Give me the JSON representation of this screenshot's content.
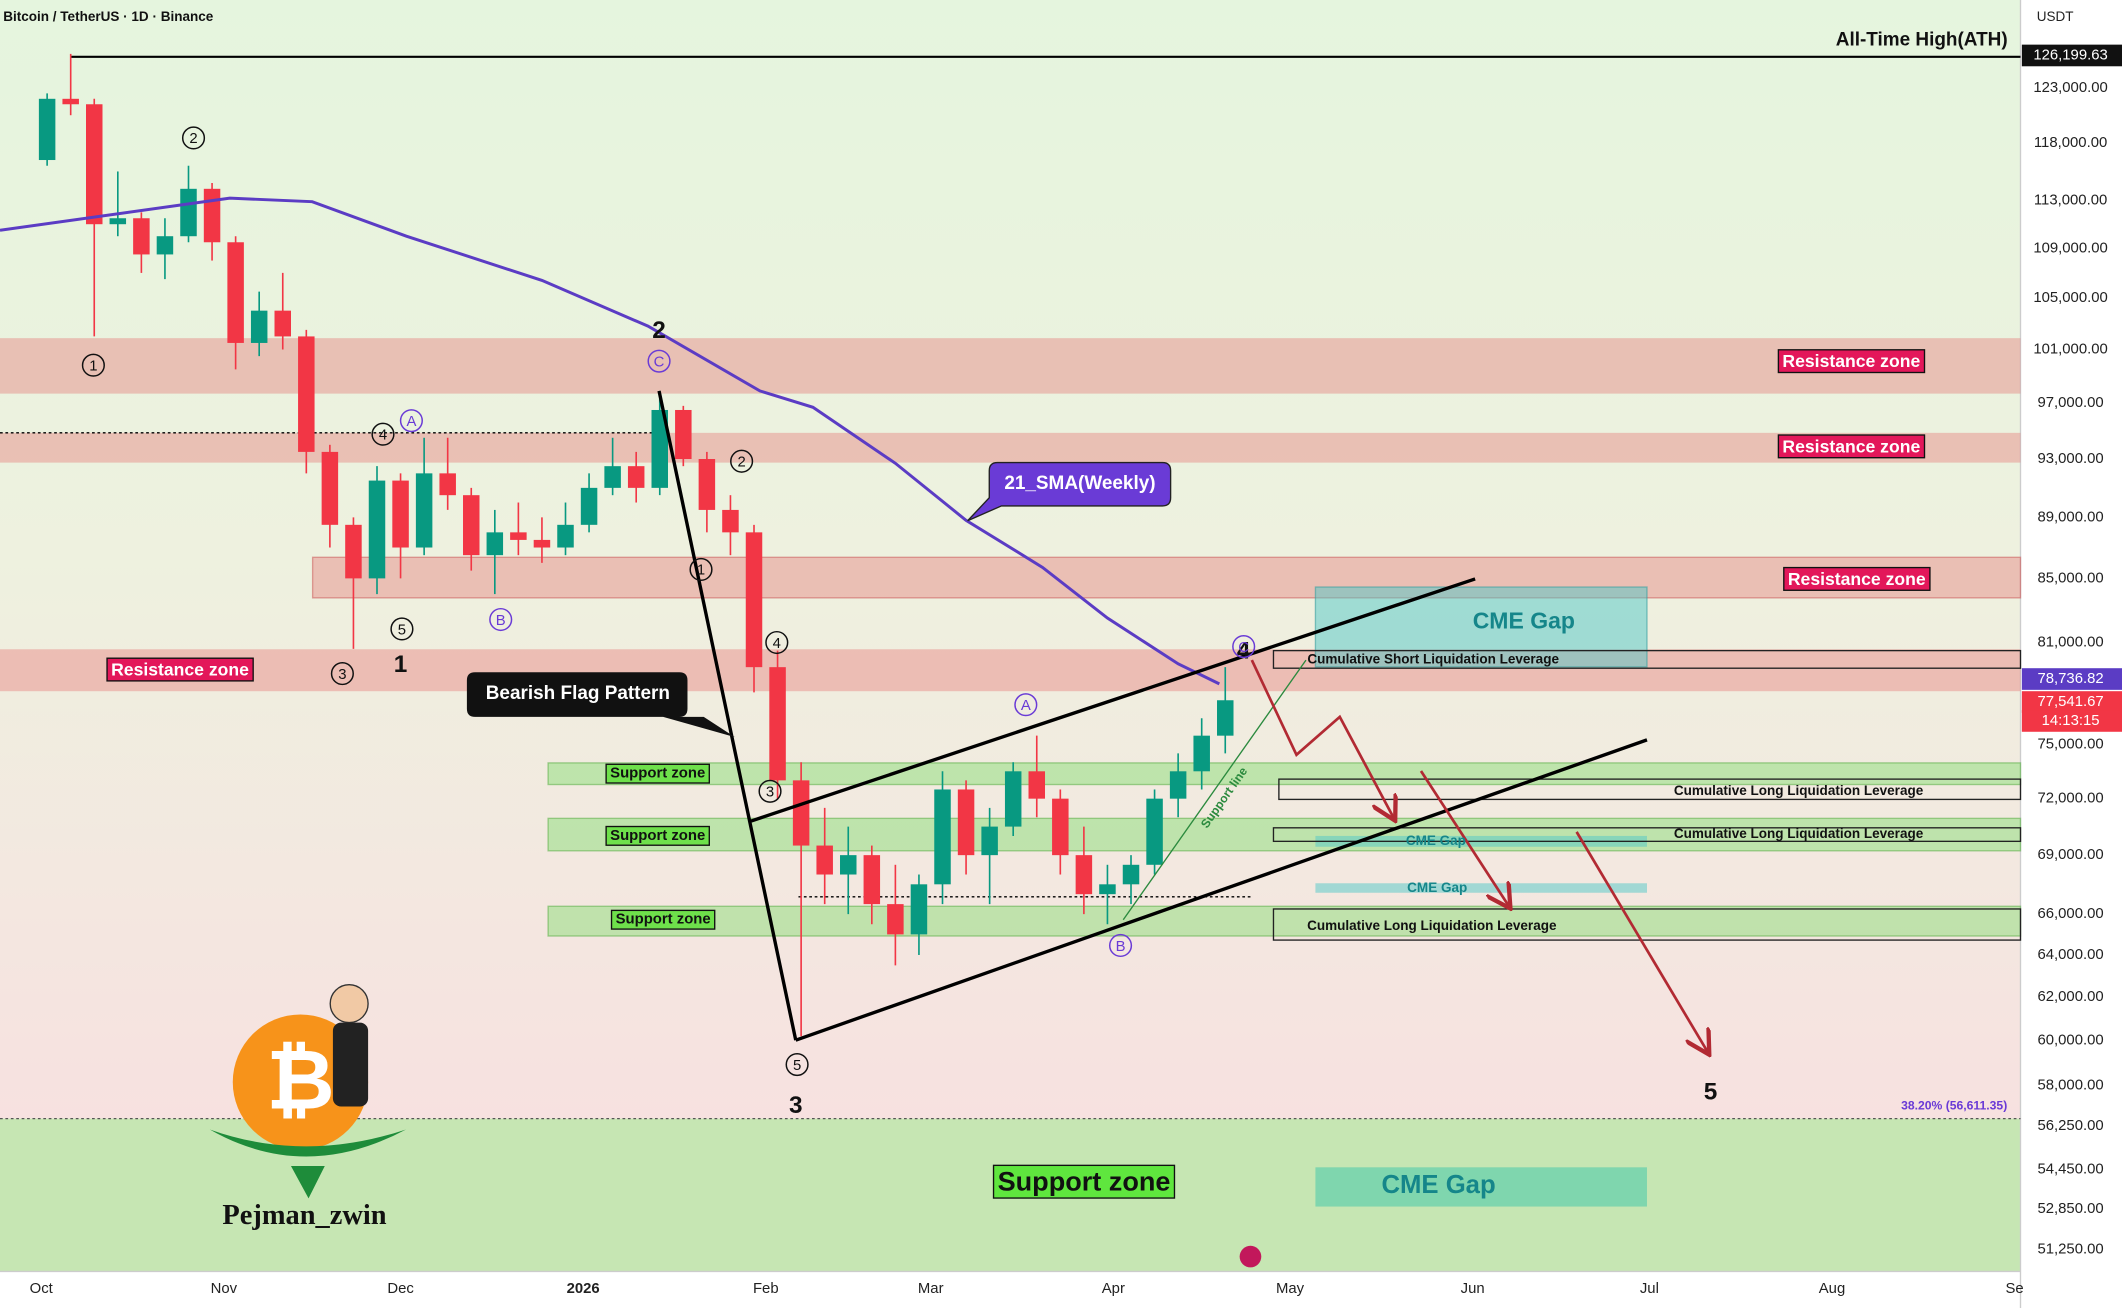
{
  "header": {
    "title": "Bitcoin / TetherUS · 1D · Binance"
  },
  "chart_data": {
    "type": "candlestick",
    "log_scale": true,
    "grid": false,
    "up_color": "#089981",
    "down_color": "#f23645",
    "xlim": [
      "2025-09-24",
      "2026-09-02"
    ],
    "xticks": [
      {
        "value": "2025-10-01",
        "label": "Oct"
      },
      {
        "value": "2025-11-01",
        "label": "Nov"
      },
      {
        "value": "2025-12-01",
        "label": "Dec"
      },
      {
        "value": "2026-01-01",
        "label": "2026"
      },
      {
        "value": "2026-02-01",
        "label": "Feb"
      },
      {
        "value": "2026-03-01",
        "label": "Mar"
      },
      {
        "value": "2026-04-01",
        "label": "Apr"
      },
      {
        "value": "2026-05-01",
        "label": "May"
      },
      {
        "value": "2026-06-01",
        "label": "Jun"
      },
      {
        "value": "2026-07-01",
        "label": "Jul"
      },
      {
        "value": "2026-08-01",
        "label": "Aug"
      },
      {
        "value": "2026-09-01",
        "label": "Se"
      }
    ],
    "ylim": [
      50420,
      131430
    ],
    "yticks": [
      {
        "value": 123000,
        "label": "123,000.00"
      },
      {
        "value": 118000,
        "label": "118,000.00"
      },
      {
        "value": 113000,
        "label": "113,000.00"
      },
      {
        "value": 109000,
        "label": "109,000.00"
      },
      {
        "value": 105000,
        "label": "105,000.00"
      },
      {
        "value": 101000,
        "label": "101,000.00"
      },
      {
        "value": 97000,
        "label": "97,000.00"
      },
      {
        "value": 93000,
        "label": "93,000.00"
      },
      {
        "value": 89000,
        "label": "89,000.00"
      },
      {
        "value": 85000,
        "label": "85,000.00"
      },
      {
        "value": 81000,
        "label": "81,000.00"
      },
      {
        "value": 75000,
        "label": "75,000.00"
      },
      {
        "value": 72000,
        "label": "72,000.00"
      },
      {
        "value": 69000,
        "label": "69,000.00"
      },
      {
        "value": 66000,
        "label": "66,000.00"
      },
      {
        "value": 64000,
        "label": "64,000.00"
      },
      {
        "value": 62000,
        "label": "62,000.00"
      },
      {
        "value": 60000,
        "label": "60,000.00"
      },
      {
        "value": 58000,
        "label": "58,000.00"
      },
      {
        "value": 56250,
        "label": "56,250.00"
      },
      {
        "value": 54450,
        "label": "54,450.00"
      },
      {
        "value": 52850,
        "label": "52,850.00"
      },
      {
        "value": 51250,
        "label": "51,250.00"
      }
    ],
    "candles": [
      {
        "date": "2025-10-02",
        "open": 116500,
        "high": 122500,
        "low": 116000,
        "close": 122000
      },
      {
        "date": "2025-10-06",
        "open": 122000,
        "high": 126199,
        "low": 120500,
        "close": 121500
      },
      {
        "date": "2025-10-10",
        "open": 121500,
        "high": 122000,
        "low": 102000,
        "close": 111000
      },
      {
        "date": "2025-10-14",
        "open": 111000,
        "high": 115500,
        "low": 110000,
        "close": 111500
      },
      {
        "date": "2025-10-18",
        "open": 111500,
        "high": 112000,
        "low": 107000,
        "close": 108500
      },
      {
        "date": "2025-10-22",
        "open": 108500,
        "high": 111500,
        "low": 106500,
        "close": 110000
      },
      {
        "date": "2025-10-26",
        "open": 110000,
        "high": 116000,
        "low": 109500,
        "close": 114000
      },
      {
        "date": "2025-10-30",
        "open": 114000,
        "high": 114500,
        "low": 108000,
        "close": 109500
      },
      {
        "date": "2025-11-03",
        "open": 109500,
        "high": 110000,
        "low": 99500,
        "close": 101500
      },
      {
        "date": "2025-11-07",
        "open": 101500,
        "high": 105500,
        "low": 100500,
        "close": 104000
      },
      {
        "date": "2025-11-11",
        "open": 104000,
        "high": 107000,
        "low": 101000,
        "close": 102000
      },
      {
        "date": "2025-11-15",
        "open": 102000,
        "high": 102500,
        "low": 92000,
        "close": 93500
      },
      {
        "date": "2025-11-19",
        "open": 93500,
        "high": 94000,
        "low": 87000,
        "close": 88500
      },
      {
        "date": "2025-11-23",
        "open": 88500,
        "high": 89000,
        "low": 80600,
        "close": 85000
      },
      {
        "date": "2025-11-27",
        "open": 85000,
        "high": 92500,
        "low": 84000,
        "close": 91500
      },
      {
        "date": "2025-12-01",
        "open": 91500,
        "high": 92000,
        "low": 85000,
        "close": 87000
      },
      {
        "date": "2025-12-05",
        "open": 87000,
        "high": 94500,
        "low": 86500,
        "close": 92000
      },
      {
        "date": "2025-12-09",
        "open": 92000,
        "high": 94500,
        "low": 89500,
        "close": 90500
      },
      {
        "date": "2025-12-13",
        "open": 90500,
        "high": 91000,
        "low": 85500,
        "close": 86500
      },
      {
        "date": "2025-12-17",
        "open": 86500,
        "high": 89500,
        "low": 84000,
        "close": 88000
      },
      {
        "date": "2025-12-21",
        "open": 88000,
        "high": 90000,
        "low": 86500,
        "close": 87500
      },
      {
        "date": "2025-12-25",
        "open": 87500,
        "high": 89000,
        "low": 86000,
        "close": 87000
      },
      {
        "date": "2025-12-29",
        "open": 87000,
        "high": 90000,
        "low": 86500,
        "close": 88500
      },
      {
        "date": "2026-01-02",
        "open": 88500,
        "high": 92000,
        "low": 88000,
        "close": 91000
      },
      {
        "date": "2026-01-06",
        "open": 91000,
        "high": 94500,
        "low": 90500,
        "close": 92500
      },
      {
        "date": "2026-01-10",
        "open": 92500,
        "high": 93500,
        "low": 90000,
        "close": 91000
      },
      {
        "date": "2026-01-14",
        "open": 91000,
        "high": 97900,
        "low": 90500,
        "close": 96500
      },
      {
        "date": "2026-01-18",
        "open": 96500,
        "high": 96800,
        "low": 92500,
        "close": 93000
      },
      {
        "date": "2026-01-22",
        "open": 93000,
        "high": 93500,
        "low": 88000,
        "close": 89500
      },
      {
        "date": "2026-01-26",
        "open": 89500,
        "high": 90500,
        "low": 86500,
        "close": 88000
      },
      {
        "date": "2026-01-30",
        "open": 88000,
        "high": 88500,
        "low": 78000,
        "close": 79500
      },
      {
        "date": "2026-02-03",
        "open": 79500,
        "high": 80500,
        "low": 72000,
        "close": 73000
      },
      {
        "date": "2026-02-07",
        "open": 73000,
        "high": 74000,
        "low": 60200,
        "close": 69500
      },
      {
        "date": "2026-02-11",
        "open": 69500,
        "high": 71500,
        "low": 66500,
        "close": 68000
      },
      {
        "date": "2026-02-15",
        "open": 68000,
        "high": 70500,
        "low": 66000,
        "close": 69000
      },
      {
        "date": "2026-02-19",
        "open": 69000,
        "high": 69500,
        "low": 65500,
        "close": 66500
      },
      {
        "date": "2026-02-23",
        "open": 66500,
        "high": 68500,
        "low": 63500,
        "close": 65000
      },
      {
        "date": "2026-02-27",
        "open": 65000,
        "high": 68000,
        "low": 64000,
        "close": 67500
      },
      {
        "date": "2026-03-03",
        "open": 67500,
        "high": 73500,
        "low": 66500,
        "close": 72500
      },
      {
        "date": "2026-03-07",
        "open": 72500,
        "high": 73000,
        "low": 68000,
        "close": 69000
      },
      {
        "date": "2026-03-11",
        "open": 69000,
        "high": 71500,
        "low": 66500,
        "close": 70500
      },
      {
        "date": "2026-03-15",
        "open": 70500,
        "high": 74000,
        "low": 70000,
        "close": 73500
      },
      {
        "date": "2026-03-19",
        "open": 73500,
        "high": 75500,
        "low": 71000,
        "close": 72000
      },
      {
        "date": "2026-03-23",
        "open": 72000,
        "high": 72500,
        "low": 68000,
        "close": 69000
      },
      {
        "date": "2026-03-27",
        "open": 69000,
        "high": 70500,
        "low": 66000,
        "close": 67000
      },
      {
        "date": "2026-03-31",
        "open": 67000,
        "high": 68500,
        "low": 65500,
        "close": 67500
      },
      {
        "date": "2026-04-04",
        "open": 67500,
        "high": 69000,
        "low": 66500,
        "close": 68500
      },
      {
        "date": "2026-04-08",
        "open": 68500,
        "high": 72500,
        "low": 68000,
        "close": 72000
      },
      {
        "date": "2026-04-12",
        "open": 72000,
        "high": 74500,
        "low": 71000,
        "close": 73500
      },
      {
        "date": "2026-04-16",
        "open": 73500,
        "high": 76500,
        "low": 72500,
        "close": 75500
      },
      {
        "date": "2026-04-20",
        "open": 75500,
        "high": 79500,
        "low": 74500,
        "close": 77541.67
      }
    ],
    "series": [
      {
        "name": "21_SMA(Weekly)",
        "color": "#5b3cc4",
        "x": [
          "2025-09-24",
          "2025-11-02",
          "2025-11-16",
          "2025-12-02",
          "2025-12-25",
          "2026-01-12",
          "2026-01-31",
          "2026-02-09",
          "2026-02-23",
          "2026-03-07",
          "2026-03-20",
          "2026-03-31",
          "2026-04-12",
          "2026-04-19"
        ],
        "values": [
          110500,
          113200,
          112900,
          110000,
          106400,
          102800,
          97900,
          96700,
          92700,
          88800,
          85700,
          82500,
          79700,
          78500
        ]
      }
    ]
  },
  "price_axis": {
    "currency": "USDT",
    "ath": "126,199.63",
    "sma": "78,736.82",
    "last": "77,541.67",
    "countdown": "14:13:15"
  },
  "annotations": {
    "ath": "All-Time High(ATH)",
    "resistance": [
      "Resistance zone",
      "Resistance zone",
      "Resistance zone",
      "Resistance zone"
    ],
    "support": [
      "Support zone",
      "Support zone",
      "Support zone",
      "Support zone"
    ],
    "cme_gap": [
      "CME Gap",
      "CME Gap",
      "CME Gap",
      "CME Gap"
    ],
    "short_liq": "Cumulative Short Liquidation Leverage",
    "long_liq": [
      "Cumulative Long Liquidation Leverage",
      "Cumulative Long Liquidation Leverage",
      "Cumulative Long Liquidation Leverage"
    ],
    "bearish_flag": "Bearish Flag Pattern",
    "support_line": "Support line",
    "fib": "38.20% (56,611.35)",
    "waves": [
      "2",
      "1",
      "3",
      "4",
      "5"
    ],
    "circled": [
      "1",
      "2",
      "3",
      "4",
      "5",
      "A",
      "B",
      "C",
      "2",
      "1",
      "4",
      "3",
      "5",
      "A",
      "B",
      "C"
    ]
  },
  "logo": {
    "symbol": "₿",
    "name": "Pejman_zwin"
  }
}
